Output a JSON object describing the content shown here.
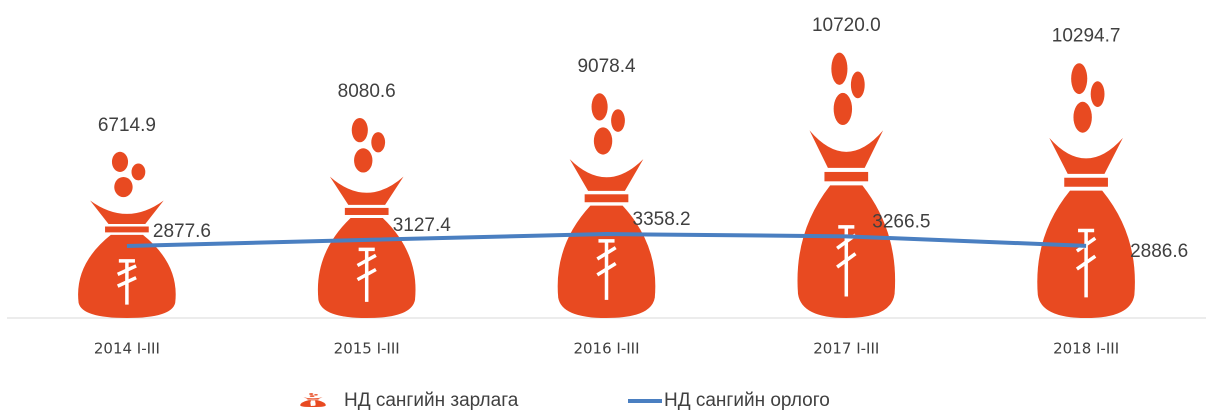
{
  "chart_data": {
    "type": "pictograph",
    "categories": [
      "2014 I-III",
      "2015 I-III",
      "2016 I-III",
      "2017 I-III",
      "2018 I-III"
    ],
    "series": [
      {
        "name": "НД сангийн зарлага",
        "type": "pictograph",
        "color": "#e84a21",
        "values": [
          6714.9,
          8080.6,
          9078.4,
          10720.0,
          10294.7
        ],
        "value_labels": [
          "6714.9",
          "8080.6",
          "9078.4",
          "10720.0",
          "10294.7"
        ]
      },
      {
        "name": "НД сангийн орлого",
        "type": "line",
        "color": "#4a7fc1",
        "values": [
          2877.6,
          3127.4,
          3358.2,
          3266.5,
          2886.6
        ]
      }
    ],
    "ylim": [
      0,
      12000
    ]
  }
}
